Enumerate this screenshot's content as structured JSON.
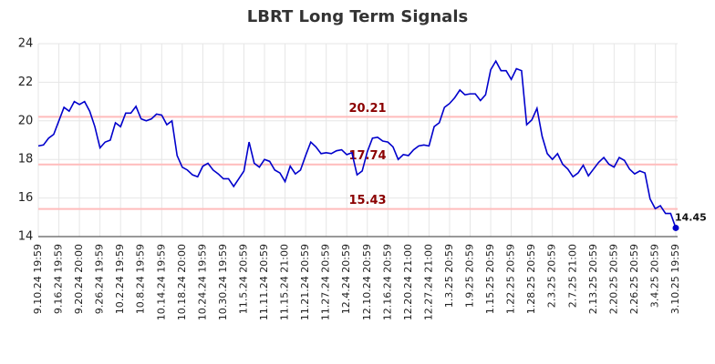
{
  "chart_data": {
    "type": "line",
    "title": "LBRT Long Term Signals",
    "categories": [
      "9.10.24 19:59",
      null,
      null,
      null,
      "9.16.24 19:59",
      null,
      null,
      null,
      "9.20.24 20:00",
      null,
      null,
      null,
      "9.26.24 19:59",
      null,
      null,
      null,
      "10.2.24 19:59",
      null,
      null,
      null,
      "10.8.24 19:59",
      null,
      null,
      null,
      "10.14.24 19:59",
      null,
      null,
      null,
      "10.18.24 20:00",
      null,
      null,
      null,
      "10.24.24 19:59",
      null,
      null,
      null,
      "10.30.24 19:59",
      null,
      null,
      null,
      "11.5.24 20:59",
      null,
      null,
      null,
      "11.11.24 20:59",
      null,
      null,
      null,
      "11.15.24 21:00",
      null,
      null,
      null,
      "11.21.24 20:59",
      null,
      null,
      null,
      "11.27.24 20:59",
      null,
      null,
      null,
      "12.4.24 20:59",
      null,
      null,
      null,
      "12.10.24 20:59",
      null,
      null,
      null,
      "12.16.24 20:59",
      null,
      null,
      null,
      "12.20.24 21:00",
      null,
      null,
      null,
      "12.27.24 21:00",
      null,
      null,
      null,
      "1.3.25 20:59",
      null,
      null,
      null,
      "1.9.25 20:59",
      null,
      null,
      null,
      "1.15.25 20:59",
      null,
      null,
      null,
      "1.22.25 20:59",
      null,
      null,
      null,
      "1.28.25 20:59",
      null,
      null,
      null,
      "2.3.25 20:59",
      null,
      null,
      null,
      "2.7.25 21:00",
      null,
      null,
      null,
      "2.13.25 20:59",
      null,
      null,
      null,
      "2.20.25 20:59",
      null,
      null,
      null,
      "2.26.25 20:59",
      null,
      null,
      null,
      "3.4.25 20:59",
      null,
      null,
      null,
      "3.10.25 19:59"
    ],
    "values": [
      18.7,
      18.75,
      19.1,
      19.3,
      20.0,
      20.7,
      20.5,
      21.0,
      20.85,
      21.0,
      20.5,
      19.7,
      18.6,
      18.9,
      19.0,
      19.9,
      19.7,
      20.4,
      20.4,
      20.75,
      20.1,
      20.0,
      20.1,
      20.35,
      20.3,
      19.8,
      20.0,
      18.2,
      17.6,
      17.45,
      17.2,
      17.1,
      17.65,
      17.8,
      17.45,
      17.25,
      17.0,
      17.0,
      16.6,
      17.0,
      17.4,
      18.9,
      17.8,
      17.6,
      18.0,
      17.9,
      17.45,
      17.3,
      16.85,
      17.65,
      17.25,
      17.45,
      18.2,
      18.9,
      18.65,
      18.3,
      18.35,
      18.3,
      18.45,
      18.5,
      18.25,
      18.35,
      17.2,
      17.4,
      18.4,
      19.1,
      19.15,
      18.95,
      18.9,
      18.65,
      18.0,
      18.25,
      18.2,
      18.5,
      18.7,
      18.75,
      18.7,
      19.7,
      19.9,
      20.7,
      20.9,
      21.2,
      21.6,
      21.35,
      21.4,
      21.4,
      21.05,
      21.35,
      22.65,
      23.1,
      22.6,
      22.6,
      22.15,
      22.7,
      22.6,
      19.8,
      20.05,
      20.65,
      19.2,
      18.3,
      18.0,
      18.3,
      17.75,
      17.5,
      17.1,
      17.3,
      17.7,
      17.15,
      17.5,
      17.85,
      18.1,
      17.75,
      17.6,
      18.1,
      17.95,
      17.5,
      17.25,
      17.4,
      17.3,
      15.95,
      15.45,
      15.6,
      15.2,
      15.2,
      14.45
    ],
    "color": "#0000cc",
    "reference_lines": [
      20.21,
      17.74,
      15.43
    ],
    "reference_color": "#ffbcbc",
    "ylim": [
      14,
      24
    ],
    "yticks": [
      14,
      16,
      18,
      20,
      22,
      24
    ],
    "grid": true
  }
}
